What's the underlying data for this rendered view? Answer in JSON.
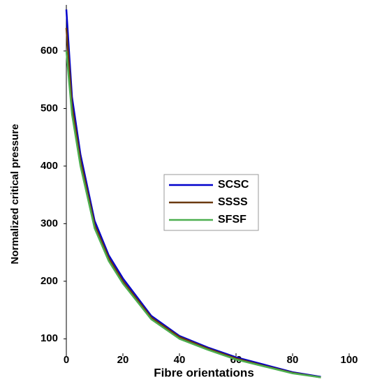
{
  "chart_data": {
    "type": "line",
    "xlabel": "Fibre orientations",
    "ylabel": "Normalized critical pressure",
    "x": [
      0,
      2,
      5,
      10,
      15,
      20,
      30,
      40,
      50,
      60,
      70,
      80,
      90
    ],
    "series": [
      {
        "name": "SCSC",
        "color": "#0000cc",
        "values": [
          672,
          520,
          420,
          305,
          245,
          205,
          140,
          105,
          85,
          68,
          55,
          42,
          34
        ]
      },
      {
        "name": "SSSS",
        "color": "#6b3a10",
        "values": [
          640,
          505,
          410,
          298,
          240,
          200,
          137,
          103,
          83,
          66,
          53,
          41,
          33
        ]
      },
      {
        "name": "SFSF",
        "color": "#4caf50",
        "values": [
          600,
          490,
          400,
          292,
          235,
          196,
          134,
          100,
          81,
          64,
          52,
          40,
          33
        ]
      }
    ],
    "xlim": [
      0,
      100
    ],
    "xticks": [
      0,
      20,
      40,
      60,
      80,
      100
    ],
    "ylim": [
      30,
      680
    ],
    "yticks": [
      100,
      200,
      300,
      400,
      500,
      600
    ]
  }
}
